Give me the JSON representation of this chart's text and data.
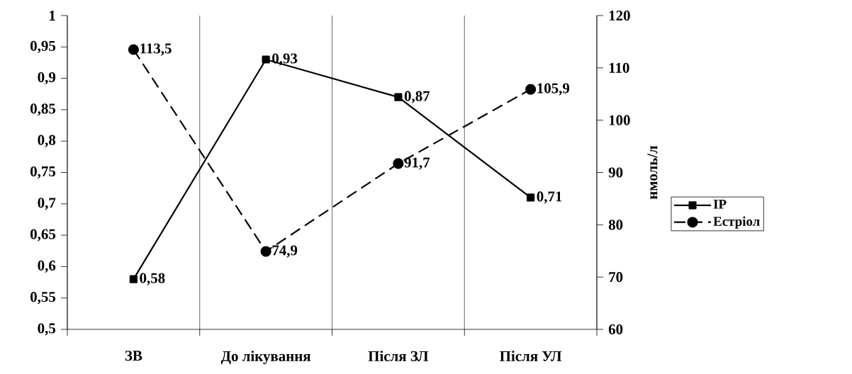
{
  "chart_data": {
    "type": "line",
    "categories": [
      "ЗВ",
      "До лікування",
      "Після ЗЛ",
      "Після УЛ"
    ],
    "series": [
      {
        "name": "ІР",
        "color": "#000000",
        "values": [
          0.58,
          0.93,
          0.87,
          0.71
        ],
        "value_labels": [
          "0,58",
          "0,93",
          "0,87",
          "0,71"
        ],
        "marker": "square",
        "line_style": "solid"
      },
      {
        "name": "Естріол",
        "color": "#000000",
        "values": [
          113.5,
          74.9,
          91.7,
          105.9
        ],
        "value_labels": [
          "113,5",
          "74,9",
          "91,7",
          "105,9"
        ],
        "marker": "circle",
        "line_style": "dashed",
        "axis": "y2"
      }
    ],
    "ylim": [
      0.5,
      1
    ],
    "yticks": [
      {
        "value": 0.5,
        "label": "0,5"
      },
      {
        "value": 0.55,
        "label": "0,55"
      },
      {
        "value": 0.6,
        "label": "0,6"
      },
      {
        "value": 0.65,
        "label": "0,65"
      },
      {
        "value": 0.7,
        "label": "0,7"
      },
      {
        "value": 0.75,
        "label": "0,75"
      },
      {
        "value": 0.8,
        "label": "0,8"
      },
      {
        "value": 0.85,
        "label": "0,85"
      },
      {
        "value": 0.9,
        "label": "0,9"
      },
      {
        "value": 0.95,
        "label": "0,95"
      },
      {
        "value": 1,
        "label": "1"
      }
    ],
    "y2lim": [
      60,
      120
    ],
    "y2ticks": [
      60,
      70,
      80,
      90,
      100,
      110,
      120
    ],
    "y2label": "нмоль/л",
    "grid": "x",
    "legend": "right"
  }
}
